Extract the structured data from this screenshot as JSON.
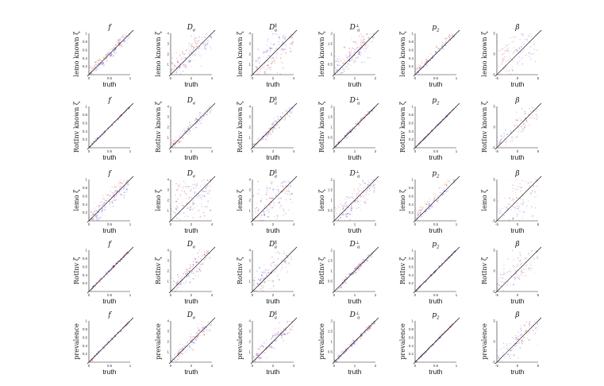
{
  "figure": {
    "colors": {
      "red": "#e02020",
      "blue": "#2030e0",
      "axis": "#222222",
      "diagonal": "#000000"
    },
    "column_titles": [
      "f",
      "D_e",
      "D_a^∥",
      "D_a^⊥",
      "p_2",
      "β"
    ],
    "row_ylabels": [
      "lemo known ζ",
      "RotInv known ζ",
      "lemo ζ",
      "RotInv ζ",
      "prevalence"
    ],
    "xlabel": "truth"
  },
  "chart_data": [
    {
      "panel": "r0c0",
      "type": "scatter",
      "title": "f",
      "title_base": "f",
      "title_sub": "",
      "title_sup": "",
      "ylabel": "lemo known ζ",
      "xlabel": "truth",
      "xlim": [
        0,
        1
      ],
      "ylim": [
        0,
        1
      ],
      "xticks": [
        "0",
        "0.5",
        "1"
      ],
      "yticks": [
        "0.2",
        "0.4",
        "0.6",
        "0.8",
        "1"
      ],
      "spread": 0.13,
      "density": 0.85,
      "bias_red": 0.04,
      "bias_blue": -0.03
    },
    {
      "panel": "r0c1",
      "type": "scatter",
      "title": "D_e",
      "title_base": "D",
      "title_sub": "e",
      "title_sup": "",
      "ylabel": "lemo known ζ",
      "xlabel": "truth",
      "xlim": [
        0,
        4
      ],
      "ylim": [
        0,
        4
      ],
      "xticks": [
        "0",
        "2",
        "4"
      ],
      "yticks": [
        "1",
        "2",
        "3",
        "4"
      ],
      "spread": 0.3,
      "density": 0.8,
      "bias_red": 0.3,
      "bias_blue": -0.1
    },
    {
      "panel": "r0c2",
      "type": "scatter",
      "title": "D_a^∥",
      "title_base": "D",
      "title_sub": "a",
      "title_sup": "∥",
      "ylabel": "lemo known ζ",
      "xlabel": "truth",
      "xlim": [
        0,
        4
      ],
      "ylim": [
        0,
        4
      ],
      "xticks": [
        "0",
        "2",
        "4"
      ],
      "yticks": [
        "1",
        "2",
        "3",
        "4"
      ],
      "spread": 0.45,
      "density": 0.8,
      "bias_red": -0.4,
      "bias_blue": 0.3
    },
    {
      "panel": "r0c3",
      "type": "scatter",
      "title": "D_a^⊥",
      "title_base": "D",
      "title_sub": "a",
      "title_sup": "⊥",
      "ylabel": "lemo known ζ",
      "xlabel": "truth",
      "xlim": [
        0,
        2
      ],
      "ylim": [
        0,
        2
      ],
      "xticks": [
        "0",
        "1",
        "2"
      ],
      "yticks": [
        "0.5",
        "1",
        "1.5",
        "2"
      ],
      "spread": 0.32,
      "density": 0.85,
      "bias_red": 0.15,
      "bias_blue": -0.05
    },
    {
      "panel": "r0c4",
      "type": "scatter",
      "title": "p_2",
      "title_base": "p",
      "title_sub": "2",
      "title_sup": "",
      "ylabel": "lemo known ζ",
      "xlabel": "truth",
      "xlim": [
        0,
        1
      ],
      "ylim": [
        0,
        1
      ],
      "xticks": [
        "0",
        "0.5",
        "1"
      ],
      "yticks": [
        "0.2",
        "0.4",
        "0.6",
        "0.8",
        "1"
      ],
      "spread": 0.08,
      "density": 0.35,
      "bias_red": 0.08,
      "bias_blue": 0.0
    },
    {
      "panel": "r0c5",
      "type": "scatter",
      "title": "β",
      "title_base": "β",
      "title_sub": "",
      "title_sup": "",
      "ylabel": "lemo known ζ",
      "xlabel": "truth",
      "xlim": [
        -5,
        5
      ],
      "ylim": [
        -5,
        5
      ],
      "xticks": [
        "-5",
        "0",
        "5"
      ],
      "yticks": [
        "-5",
        "0",
        "5"
      ],
      "spread": 0.6,
      "density": 0.5,
      "bias_red": 0.8,
      "bias_blue": -0.8
    },
    {
      "panel": "r1c0",
      "type": "scatter",
      "title": "f",
      "title_base": "f",
      "title_sub": "",
      "title_sup": "",
      "ylabel": "RotInv known ζ",
      "xlabel": "truth",
      "xlim": [
        0,
        1
      ],
      "ylim": [
        0,
        1
      ],
      "xticks": [
        "0",
        "0.5",
        "1"
      ],
      "yticks": [
        "0.2",
        "0.4",
        "0.6",
        "0.8",
        "1"
      ],
      "spread": 0.025,
      "density": 0.45,
      "bias_red": 0.0,
      "bias_blue": 0.0
    },
    {
      "panel": "r1c1",
      "type": "scatter",
      "title": "D_e",
      "title_base": "D",
      "title_sub": "e",
      "title_sup": "",
      "ylabel": "RotInv known ζ",
      "xlabel": "truth",
      "xlim": [
        0,
        4
      ],
      "ylim": [
        0,
        4
      ],
      "xticks": [
        "0",
        "2",
        "4"
      ],
      "yticks": [
        "1",
        "2",
        "3",
        "4"
      ],
      "spread": 0.12,
      "density": 0.4,
      "bias_red": 0.05,
      "bias_blue": 0.0
    },
    {
      "panel": "r1c2",
      "type": "scatter",
      "title": "D_a^∥",
      "title_base": "D",
      "title_sub": "a",
      "title_sup": "∥",
      "ylabel": "RotInv known ζ",
      "xlabel": "truth",
      "xlim": [
        0,
        4
      ],
      "ylim": [
        0,
        4
      ],
      "xticks": [
        "0",
        "2",
        "4"
      ],
      "yticks": [
        "1",
        "2",
        "3",
        "4"
      ],
      "spread": 0.14,
      "density": 0.4,
      "bias_red": 0.05,
      "bias_blue": 0.0
    },
    {
      "panel": "r1c3",
      "type": "scatter",
      "title": "D_a^⊥",
      "title_base": "D",
      "title_sub": "a",
      "title_sup": "⊥",
      "ylabel": "RotInv known ζ",
      "xlabel": "truth",
      "xlim": [
        0,
        2
      ],
      "ylim": [
        0,
        2
      ],
      "xticks": [
        "0",
        "1",
        "2"
      ],
      "yticks": [
        "0.5",
        "1",
        "1.5",
        "2"
      ],
      "spread": 0.05,
      "density": 0.4,
      "bias_red": 0.0,
      "bias_blue": 0.0
    },
    {
      "panel": "r1c4",
      "type": "scatter",
      "title": "p_2",
      "title_base": "p",
      "title_sub": "2",
      "title_sup": "",
      "ylabel": "RotInv known ζ",
      "xlabel": "truth",
      "xlim": [
        0,
        1
      ],
      "ylim": [
        0,
        1
      ],
      "xticks": [
        "0",
        "0.5",
        "1"
      ],
      "yticks": [
        "0.2",
        "0.4",
        "0.6",
        "0.8",
        "1"
      ],
      "spread": 0.02,
      "density": 0.4,
      "bias_red": 0.0,
      "bias_blue": 0.0
    },
    {
      "panel": "r1c5",
      "type": "scatter",
      "title": "β",
      "title_base": "β",
      "title_sub": "",
      "title_sup": "",
      "ylabel": "RotInv known ζ",
      "xlabel": "truth",
      "xlim": [
        -5,
        5
      ],
      "ylim": [
        -5,
        5
      ],
      "xticks": [
        "-5",
        "0",
        "5"
      ],
      "yticks": [
        "-5",
        "0",
        "5"
      ],
      "spread": 0.3,
      "density": 0.35,
      "bias_red": 0.2,
      "bias_blue": -0.2
    },
    {
      "panel": "r2c0",
      "type": "scatter",
      "title": "f",
      "title_base": "f",
      "title_sub": "",
      "title_sup": "",
      "ylabel": "lemo ζ",
      "xlabel": "truth",
      "xlim": [
        0,
        1
      ],
      "ylim": [
        0,
        1
      ],
      "xticks": [
        "0",
        "0.5",
        "1"
      ],
      "yticks": [
        "0.2",
        "0.4",
        "0.6",
        "0.8",
        "1"
      ],
      "spread": 0.2,
      "density": 0.95,
      "bias_red": 0.05,
      "bias_blue": -0.02
    },
    {
      "panel": "r2c1",
      "type": "scatter",
      "title": "D_e",
      "title_base": "D",
      "title_sub": "e",
      "title_sup": "",
      "ylabel": "lemo ζ",
      "xlabel": "truth",
      "xlim": [
        0,
        4
      ],
      "ylim": [
        0,
        4
      ],
      "xticks": [
        "0",
        "2",
        "4"
      ],
      "yticks": [
        "1",
        "2",
        "3",
        "4"
      ],
      "spread": 0.7,
      "density": 0.95,
      "bias_red": 0.2,
      "bias_blue": -0.1
    },
    {
      "panel": "r2c2",
      "type": "scatter",
      "title": "D_a^∥",
      "title_base": "D",
      "title_sub": "a",
      "title_sup": "∥",
      "ylabel": "lemo ζ",
      "xlabel": "truth",
      "xlim": [
        0,
        4
      ],
      "ylim": [
        0,
        4
      ],
      "xticks": [
        "0",
        "2",
        "4"
      ],
      "yticks": [
        "1",
        "2",
        "3",
        "4"
      ],
      "spread": 0.7,
      "density": 0.95,
      "bias_red": -0.2,
      "bias_blue": 0.2
    },
    {
      "panel": "r2c3",
      "type": "scatter",
      "title": "D_a^⊥",
      "title_base": "D",
      "title_sub": "a",
      "title_sup": "⊥",
      "ylabel": "lemo ζ",
      "xlabel": "truth",
      "xlim": [
        0,
        2
      ],
      "ylim": [
        0,
        2
      ],
      "xticks": [
        "0",
        "1",
        "2"
      ],
      "yticks": [
        "0.5",
        "1",
        "1.5",
        "2"
      ],
      "spread": 0.35,
      "density": 0.85,
      "bias_red": 0.1,
      "bias_blue": -0.05
    },
    {
      "panel": "r2c4",
      "type": "scatter",
      "title": "p_2",
      "title_base": "p",
      "title_sub": "2",
      "title_sup": "",
      "ylabel": "lemo ζ",
      "xlabel": "truth",
      "xlim": [
        0,
        1
      ],
      "ylim": [
        0,
        1
      ],
      "xticks": [
        "0",
        "0.5",
        "1"
      ],
      "yticks": [
        "0.2",
        "0.4",
        "0.6",
        "0.8",
        "1"
      ],
      "spread": 0.1,
      "density": 0.35,
      "bias_red": 0.1,
      "bias_blue": 0.0
    },
    {
      "panel": "r2c5",
      "type": "scatter",
      "title": "β",
      "title_base": "β",
      "title_sub": "",
      "title_sup": "",
      "ylabel": "lemo ζ",
      "xlabel": "truth",
      "xlim": [
        -5,
        5
      ],
      "ylim": [
        -5,
        5
      ],
      "xticks": [
        "-5",
        "0",
        "5"
      ],
      "yticks": [
        "-5",
        "0",
        "5"
      ],
      "spread": 0.6,
      "density": 0.6,
      "bias_red": 1.0,
      "bias_blue": -1.0
    },
    {
      "panel": "r3c0",
      "type": "scatter",
      "title": "f",
      "title_base": "f",
      "title_sub": "",
      "title_sup": "",
      "ylabel": "RotInv ζ",
      "xlabel": "truth",
      "xlim": [
        0,
        1
      ],
      "ylim": [
        0,
        1
      ],
      "xticks": [
        "0",
        "0.5",
        "1"
      ],
      "yticks": [
        "0.2",
        "0.4",
        "0.6",
        "0.8",
        "1"
      ],
      "spread": 0.04,
      "density": 0.5,
      "bias_red": 0.0,
      "bias_blue": 0.0
    },
    {
      "panel": "r3c1",
      "type": "scatter",
      "title": "D_e",
      "title_base": "D",
      "title_sub": "e",
      "title_sup": "",
      "ylabel": "RotInv ζ",
      "xlabel": "truth",
      "xlim": [
        0,
        4
      ],
      "ylim": [
        0,
        4
      ],
      "xticks": [
        "0",
        "2",
        "4"
      ],
      "yticks": [
        "1",
        "2",
        "3",
        "4"
      ],
      "spread": 0.25,
      "density": 0.55,
      "bias_red": 0.1,
      "bias_blue": 0.0
    },
    {
      "panel": "r3c2",
      "type": "scatter",
      "title": "D_a^∥",
      "title_base": "D",
      "title_sub": "a",
      "title_sup": "∥",
      "ylabel": "RotInv ζ",
      "xlabel": "truth",
      "xlim": [
        0,
        4
      ],
      "ylim": [
        0,
        4
      ],
      "xticks": [
        "0",
        "2",
        "4"
      ],
      "yticks": [
        "1",
        "2",
        "3",
        "4"
      ],
      "spread": 0.35,
      "density": 0.6,
      "bias_red": -0.05,
      "bias_blue": 0.05
    },
    {
      "panel": "r3c3",
      "type": "scatter",
      "title": "D_a^⊥",
      "title_base": "D",
      "title_sub": "a",
      "title_sup": "⊥",
      "ylabel": "RotInv ζ",
      "xlabel": "truth",
      "xlim": [
        0,
        2
      ],
      "ylim": [
        0,
        2
      ],
      "xticks": [
        "0",
        "1",
        "2"
      ],
      "yticks": [
        "0.5",
        "1",
        "1.5",
        "2"
      ],
      "spread": 0.08,
      "density": 0.45,
      "bias_red": 0.0,
      "bias_blue": 0.0
    },
    {
      "panel": "r3c4",
      "type": "scatter",
      "title": "p_2",
      "title_base": "p",
      "title_sub": "2",
      "title_sup": "",
      "ylabel": "RotInv ζ",
      "xlabel": "truth",
      "xlim": [
        0,
        1
      ],
      "ylim": [
        0,
        1
      ],
      "xticks": [
        "0",
        "0.5",
        "1"
      ],
      "yticks": [
        "0.2",
        "0.4",
        "0.6",
        "0.8",
        "1"
      ],
      "spread": 0.03,
      "density": 0.45,
      "bias_red": 0.0,
      "bias_blue": 0.0
    },
    {
      "panel": "r3c5",
      "type": "scatter",
      "title": "β",
      "title_base": "β",
      "title_sub": "",
      "title_sup": "",
      "ylabel": "RotInv ζ",
      "xlabel": "truth",
      "xlim": [
        -5,
        5
      ],
      "ylim": [
        -5,
        5
      ],
      "xticks": [
        "-5",
        "0",
        "5"
      ],
      "yticks": [
        "-5",
        "0",
        "5"
      ],
      "spread": 0.4,
      "density": 0.4,
      "bias_red": 0.2,
      "bias_blue": -0.2
    },
    {
      "panel": "r4c0",
      "type": "scatter",
      "title": "f",
      "title_base": "f",
      "title_sub": "",
      "title_sup": "",
      "ylabel": "prevalence",
      "xlabel": "truth",
      "xlim": [
        0,
        1
      ],
      "ylim": [
        0,
        1
      ],
      "xticks": [
        "0",
        "0.5",
        "1"
      ],
      "yticks": [
        "0.2",
        "0.4",
        "0.6",
        "0.8",
        "1"
      ],
      "spread": 0.03,
      "density": 0.45,
      "bias_red": 0.0,
      "bias_blue": 0.0
    },
    {
      "panel": "r4c1",
      "type": "scatter",
      "title": "D_e",
      "title_base": "D",
      "title_sub": "e",
      "title_sup": "",
      "ylabel": "prevalence",
      "xlabel": "truth",
      "xlim": [
        0,
        4
      ],
      "ylim": [
        0,
        4
      ],
      "xticks": [
        "0",
        "2",
        "4"
      ],
      "yticks": [
        "1",
        "2",
        "3",
        "4"
      ],
      "spread": 0.18,
      "density": 0.5,
      "bias_red": 0.05,
      "bias_blue": 0.0
    },
    {
      "panel": "r4c2",
      "type": "scatter",
      "title": "D_a^∥",
      "title_base": "D",
      "title_sub": "a",
      "title_sup": "∥",
      "ylabel": "prevalence",
      "xlabel": "truth",
      "xlim": [
        0,
        4
      ],
      "ylim": [
        0,
        4
      ],
      "xticks": [
        "0",
        "2",
        "4"
      ],
      "yticks": [
        "1",
        "2",
        "3",
        "4"
      ],
      "spread": 0.2,
      "density": 0.5,
      "bias_red": 0.0,
      "bias_blue": 0.0
    },
    {
      "panel": "r4c3",
      "type": "scatter",
      "title": "D_a^⊥",
      "title_base": "D",
      "title_sub": "a",
      "title_sup": "⊥",
      "ylabel": "prevalence",
      "xlabel": "truth",
      "xlim": [
        0,
        2
      ],
      "ylim": [
        0,
        2
      ],
      "xticks": [
        "0",
        "1",
        "2"
      ],
      "yticks": [
        "0.5",
        "1",
        "1.5",
        "2"
      ],
      "spread": 0.06,
      "density": 0.45,
      "bias_red": 0.0,
      "bias_blue": 0.0
    },
    {
      "panel": "r4c4",
      "type": "scatter",
      "title": "p_2",
      "title_base": "p",
      "title_sub": "2",
      "title_sup": "",
      "ylabel": "prevalence",
      "xlabel": "truth",
      "xlim": [
        0,
        1
      ],
      "ylim": [
        0,
        1
      ],
      "xticks": [
        "0",
        "0.5",
        "1"
      ],
      "yticks": [
        "0.2",
        "0.4",
        "0.6",
        "0.8",
        "1"
      ],
      "spread": 0.025,
      "density": 0.45,
      "bias_red": 0.0,
      "bias_blue": 0.0
    },
    {
      "panel": "r4c5",
      "type": "scatter",
      "title": "β",
      "title_base": "β",
      "title_sub": "",
      "title_sup": "",
      "ylabel": "prevalence",
      "xlabel": "truth",
      "xlim": [
        -5,
        5
      ],
      "ylim": [
        -5,
        5
      ],
      "xticks": [
        "-5",
        "0",
        "5"
      ],
      "yticks": [
        "-5",
        "0",
        "5"
      ],
      "spread": 0.35,
      "density": 0.4,
      "bias_red": 0.2,
      "bias_blue": -0.2
    }
  ]
}
